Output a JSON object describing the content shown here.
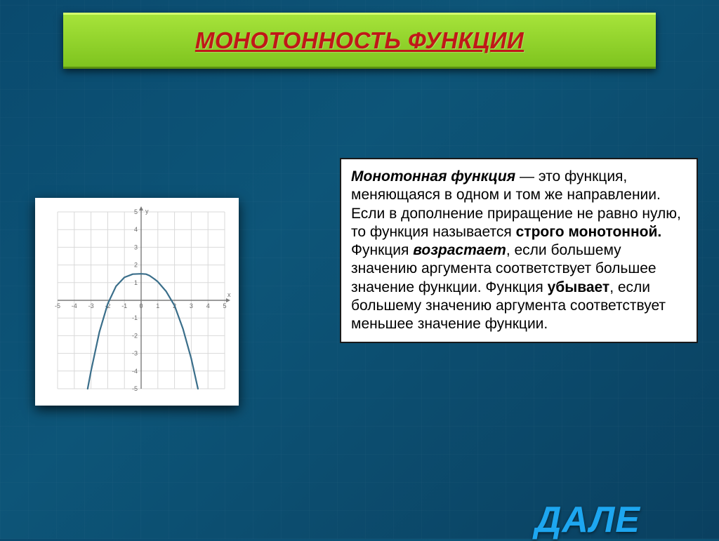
{
  "header": {
    "title": "МОНОТОННОСТЬ ФУНКЦИИ"
  },
  "chart": {
    "type": "line",
    "xlim": [
      -5,
      5
    ],
    "ylim": [
      -5,
      5
    ],
    "xtick_step": 1,
    "ytick_step": 1,
    "background_color": "#ffffff",
    "grid_color": "#d9d9d9",
    "axis_color": "#7a7a7a",
    "tick_label_color": "#6b6b6b",
    "tick_label_fontsize": 9,
    "x_axis_label": "x",
    "y_axis_label": "y",
    "series": [
      {
        "kind": "curve",
        "color": "#3a6e8a",
        "width": 2.2,
        "points": [
          [
            -3.2,
            -5.0
          ],
          [
            -3.0,
            -4.0
          ],
          [
            -2.5,
            -1.8
          ],
          [
            -2.0,
            -0.2
          ],
          [
            -1.5,
            0.8
          ],
          [
            -1.0,
            1.3
          ],
          [
            -0.5,
            1.48
          ],
          [
            0.0,
            1.5
          ],
          [
            0.3,
            1.48
          ],
          [
            0.5,
            1.4
          ],
          [
            0.8,
            1.2
          ],
          [
            1.0,
            1.05
          ],
          [
            1.5,
            0.5
          ],
          [
            2.0,
            -0.3
          ],
          [
            2.5,
            -1.6
          ],
          [
            3.0,
            -3.3
          ],
          [
            3.4,
            -5.0
          ]
        ]
      }
    ]
  },
  "definition": {
    "term": "Монотонная функция",
    "dash": " — ",
    "line1": "это функция, меняющаяся в одном и том же направлении.",
    "para2_pre": "Если в дополнение приращение не равно нулю, то функция называется ",
    "strict": "строго монотонной.",
    "para3_pre": "Функция ",
    "increases": "возрастает",
    "para3_mid": ", если большему значению аргумента соответствует большее значение функции. Функция ",
    "decreases": "убывает",
    "para3_post": ", если большему значению аргумента соответствует меньшее значение функции."
  },
  "footer": {
    "next": "ДАЛЕ"
  },
  "colors": {
    "background_top": "#0a4a6e",
    "header_gradient_top": "#a6e33a",
    "header_gradient_bottom": "#7fc41f",
    "header_text": "#c01818",
    "footer_text": "#1da6f0"
  }
}
